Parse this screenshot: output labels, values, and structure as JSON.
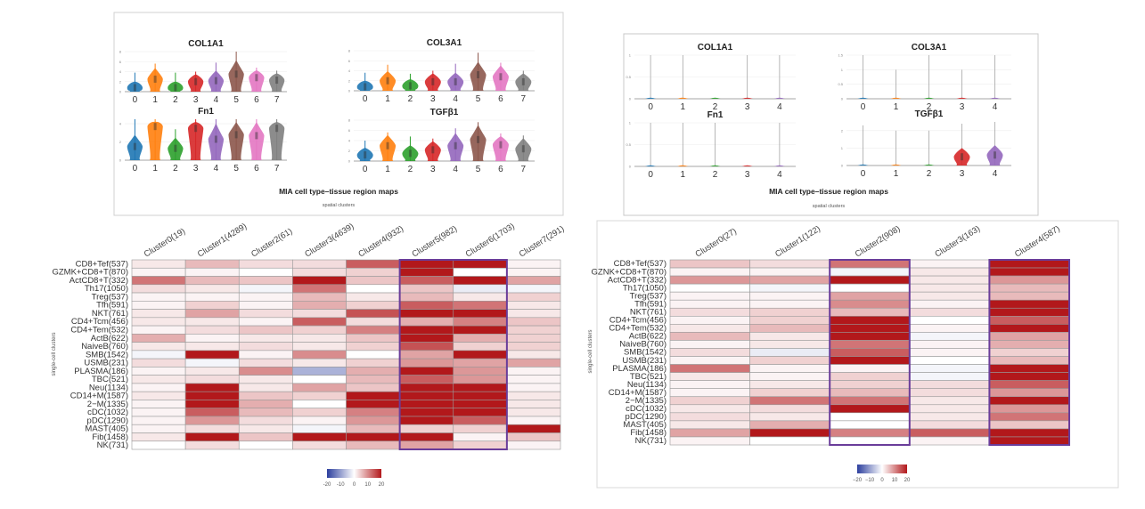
{
  "chart_data": [
    {
      "type": "violin",
      "panel": "left-violins",
      "title": "MIA cell type–tissue region maps",
      "subtitle": "spatial clusters",
      "categories": [
        "0",
        "1",
        "2",
        "3",
        "4",
        "5",
        "6",
        "7"
      ],
      "colors": [
        "#1f77b4",
        "#ff7f0e",
        "#2ca02c",
        "#d62728",
        "#9467bd",
        "#8c564b",
        "#e377c2",
        "#7f7f7f"
      ],
      "plots": [
        {
          "gene": "COL1A1",
          "ylim": [
            0,
            8
          ],
          "yticks": [
            "0",
            "2",
            "4",
            "6",
            "8"
          ],
          "medians": [
            0.8,
            2.5,
            0.8,
            2.0,
            2.2,
            3.5,
            2.8,
            2.3
          ],
          "max": [
            3.8,
            5.6,
            3.8,
            4.0,
            5.8,
            8.0,
            4.8,
            4.2
          ]
        },
        {
          "gene": "COL3A1",
          "ylim": [
            0,
            8
          ],
          "yticks": [
            "0",
            "2",
            "4",
            "6",
            "8"
          ],
          "medians": [
            0.8,
            2.0,
            1.0,
            1.8,
            1.8,
            3.2,
            2.8,
            1.8
          ],
          "max": [
            3.6,
            5.2,
            3.4,
            4.0,
            5.4,
            7.6,
            5.6,
            4.0
          ]
        },
        {
          "gene": "Fn1",
          "ylim": [
            0,
            4.5
          ],
          "yticks": [
            "0",
            "2",
            "4"
          ],
          "medians": [
            1.5,
            3.7,
            1.3,
            3.5,
            2.3,
            2.8,
            2.7,
            3.5
          ],
          "max": [
            4.8,
            6.5,
            3.4,
            5.4,
            5.0,
            5.8,
            4.6,
            6.0
          ]
        },
        {
          "gene": "TGFβ1",
          "ylim": [
            0,
            8
          ],
          "yticks": [
            "0",
            "2",
            "4",
            "6",
            "8"
          ],
          "medians": [
            1.2,
            3.0,
            1.5,
            2.2,
            3.0,
            4.2,
            3.2,
            2.4
          ],
          "max": [
            4.0,
            5.6,
            4.8,
            4.4,
            6.4,
            7.6,
            5.4,
            5.0
          ]
        }
      ]
    },
    {
      "type": "violin",
      "panel": "right-violins",
      "title": "MIA cell type–tissue region maps",
      "subtitle": "spatial clusters",
      "categories": [
        "0",
        "1",
        "2",
        "3",
        "4"
      ],
      "colors": [
        "#1f77b4",
        "#ff7f0e",
        "#2ca02c",
        "#d62728",
        "#9467bd"
      ],
      "plots": [
        {
          "gene": "COL1A1",
          "ylim": [
            0,
            1
          ],
          "yticks": [
            "0",
            "0.5",
            "1"
          ],
          "medians": [
            0,
            0,
            0,
            0,
            0
          ],
          "max": [
            1,
            1,
            0,
            1,
            1
          ]
        },
        {
          "gene": "COL3A1",
          "ylim": [
            0,
            1.5
          ],
          "yticks": [
            "0",
            "0.5",
            "1",
            "1.5"
          ],
          "medians": [
            0,
            0,
            0,
            0,
            0
          ],
          "max": [
            1.5,
            1,
            1.5,
            1,
            1.5
          ]
        },
        {
          "gene": "Fn1",
          "ylim": [
            0,
            1
          ],
          "yticks": [
            "0",
            "0.5",
            "1"
          ],
          "medians": [
            0,
            0,
            0,
            0,
            0
          ],
          "max": [
            1,
            1,
            1,
            0,
            1
          ]
        },
        {
          "gene": "TGFβ1",
          "ylim": [
            0,
            2.5
          ],
          "yticks": [
            "0",
            "1",
            "2"
          ],
          "medians": [
            0,
            0,
            0,
            0.5,
            0.6
          ],
          "max": [
            2.3,
            2,
            2,
            2.4,
            2.5
          ]
        }
      ]
    },
    {
      "type": "heatmap",
      "panel": "left-heatmap",
      "ylabel": "single-cell clusters",
      "columns": [
        "Cluster0(19)",
        "Cluster1(4289)",
        "Cluster2(61)",
        "Cluster3(4639)",
        "Cluster4(932)",
        "Cluster5(982)",
        "Cluster6(1703)",
        "Cluster7(291)"
      ],
      "rows": [
        "CD8+Tef(537)",
        "GZMK+CD8+T(870)",
        "ActCD8+T(332)",
        "Th17(1050)",
        "Treg(537)",
        "Tfh(591)",
        "NKT(761)",
        "CD4+Tcm(456)",
        "CD4+Tem(532)",
        "ActB(622)",
        "NaiveB(760)",
        "SMB(1542)",
        "USMB(231)",
        "PLASMA(186)",
        "TBC(521)",
        "Neu(1134)",
        "CD14+M(1587)",
        "2−M(1335)",
        "cDC(1032)",
        "pDC(1290)",
        "MAST(405)",
        "Fib(1458)",
        "NK(731)"
      ],
      "values": [
        [
          2,
          6,
          3,
          3,
          14,
          20,
          20,
          1
        ],
        [
          1,
          1,
          0,
          3,
          4,
          20,
          0,
          1
        ],
        [
          12,
          6,
          5,
          20,
          5,
          14,
          20,
          8
        ],
        [
          3,
          2,
          -1,
          12,
          0,
          5,
          -2,
          -1
        ],
        [
          1,
          1,
          1,
          6,
          2,
          6,
          2,
          4
        ],
        [
          1,
          4,
          1,
          7,
          4,
          14,
          12,
          2
        ],
        [
          2,
          8,
          3,
          3,
          15,
          20,
          20,
          2
        ],
        [
          2,
          2,
          1,
          14,
          3,
          7,
          11,
          5
        ],
        [
          1,
          3,
          5,
          4,
          11,
          20,
          20,
          4
        ],
        [
          7,
          1,
          2,
          2,
          5,
          20,
          7,
          4
        ],
        [
          2,
          2,
          3,
          2,
          4,
          15,
          4,
          4
        ],
        [
          -1,
          20,
          1,
          10,
          0,
          8,
          20,
          2
        ],
        [
          3,
          -1,
          3,
          2,
          4,
          9,
          8,
          8
        ],
        [
          1,
          2,
          10,
          -8,
          7,
          20,
          9,
          1
        ],
        [
          2,
          3,
          2,
          0,
          6,
          14,
          9,
          1
        ],
        [
          1,
          20,
          2,
          8,
          5,
          20,
          20,
          1
        ],
        [
          2,
          20,
          5,
          4,
          20,
          20,
          20,
          2
        ],
        [
          1,
          20,
          7,
          0,
          20,
          20,
          20,
          2
        ],
        [
          1,
          14,
          6,
          4,
          11,
          20,
          20,
          2
        ],
        [
          1,
          9,
          3,
          1,
          9,
          20,
          14,
          1
        ],
        [
          1,
          3,
          2,
          -1,
          6,
          4,
          4,
          20
        ],
        [
          2,
          20,
          5,
          20,
          20,
          20,
          1,
          5
        ],
        [
          0,
          3,
          0,
          3,
          6,
          8,
          4,
          1
        ]
      ],
      "highlighted_columns": [
        "Cluster5(982)",
        "Cluster6(1703)"
      ],
      "highlight_color": "#6a3d9a",
      "colorbar": {
        "range": [
          -20,
          20
        ],
        "ticks": [
          "-20",
          "-10",
          "0",
          "10",
          "20"
        ],
        "low": "#2c3f9e",
        "mid": "#ffffff",
        "high": "#b2181b"
      }
    },
    {
      "type": "heatmap",
      "panel": "right-heatmap",
      "ylabel": "single-cell clusters",
      "columns": [
        "Cluster0(27)",
        "Cluster1(122)",
        "Cluster2(908)",
        "Cluster3(163)",
        "Cluster4(587)"
      ],
      "rows": [
        "CD8+Tef(537)",
        "GZNK+CD8+T(870)",
        "ActCD8+T(332)",
        "Th17(1050)",
        "Treg(537)",
        "Tfh(591)",
        "NKT(761)",
        "CD4+Tcm(456)",
        "CD4+Tem(532)",
        "ActB(622)",
        "NaiveB(760)",
        "SMB(1542)",
        "USMB(231)",
        "PLASMA(186)",
        "TBC(521)",
        "Neu(1134)",
        "CD14+M(1587)",
        "2−M(1335)",
        "cDC(1032)",
        "pDC(1290)",
        "MAST(405)",
        "Fib(1458)",
        "NK(731)"
      ],
      "values": [
        [
          5,
          3,
          12,
          1,
          20
        ],
        [
          1,
          1,
          -1,
          2,
          20
        ],
        [
          9,
          8,
          20,
          2,
          9
        ],
        [
          0,
          -1,
          0,
          2,
          6
        ],
        [
          1,
          1,
          8,
          2,
          6
        ],
        [
          1,
          1,
          10,
          1,
          20
        ],
        [
          3,
          4,
          6,
          3,
          20
        ],
        [
          1,
          4,
          20,
          0,
          14
        ],
        [
          2,
          6,
          20,
          1,
          20
        ],
        [
          6,
          2,
          20,
          -1,
          8
        ],
        [
          1,
          2,
          12,
          1,
          7
        ],
        [
          3,
          -2,
          14,
          1,
          4
        ],
        [
          1,
          4,
          20,
          0,
          6
        ],
        [
          12,
          1,
          1,
          -1,
          20
        ],
        [
          2,
          1,
          4,
          -1,
          20
        ],
        [
          1,
          2,
          4,
          3,
          14
        ],
        [
          1,
          4,
          6,
          3,
          9
        ],
        [
          4,
          12,
          12,
          2,
          20
        ],
        [
          2,
          3,
          20,
          2,
          9
        ],
        [
          3,
          2,
          0,
          2,
          12
        ],
        [
          2,
          7,
          0,
          3,
          5
        ],
        [
          8,
          20,
          11,
          14,
          20
        ],
        [
          1,
          0,
          0,
          1,
          20
        ]
      ],
      "highlighted_columns": [
        "Cluster2(908)",
        "Cluster4(587)"
      ],
      "highlight_color": "#6a3d9a",
      "colorbar": {
        "range": [
          -20,
          20
        ],
        "ticks": [
          "−20",
          "−10",
          "0",
          "10",
          "20"
        ],
        "low": "#2c3f9e",
        "mid": "#ffffff",
        "high": "#b2181b"
      }
    }
  ]
}
